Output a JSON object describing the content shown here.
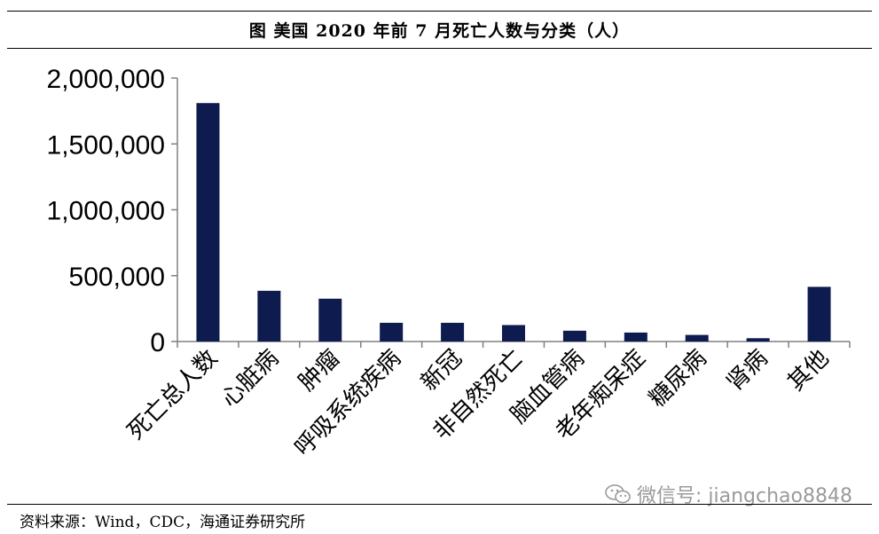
{
  "header": {
    "title": "图  美国 2020 年前 7 月死亡人数与分类（人）"
  },
  "chart_data": {
    "type": "bar",
    "title": "图  美国 2020 年前 7 月死亡人数与分类（人）",
    "categories": [
      "死亡总人数",
      "心脏病",
      "肿瘤",
      "呼吸系统疾病",
      "新冠",
      "非自然死亡",
      "脑血管病",
      "老年痴呆症",
      "糖尿病",
      "肾病",
      "其他"
    ],
    "values": [
      1810000,
      385000,
      325000,
      142000,
      142000,
      125000,
      82000,
      68000,
      50000,
      25000,
      415000
    ],
    "ylim": [
      0,
      2000000
    ],
    "yticks": [
      0,
      500000,
      1000000,
      1500000,
      2000000
    ],
    "ytick_labels": [
      "0",
      "500,000",
      "1,000,000",
      "1,500,000",
      "2,000,000"
    ],
    "xlabel": "",
    "ylabel": "",
    "bar_color": "#0d1b4f",
    "grid": false
  },
  "watermark": {
    "text": "微信号: jiangchao8848",
    "icon": "wechat-icon"
  },
  "footer": {
    "source": "资料来源：Wind，CDC，海通证券研究所"
  }
}
